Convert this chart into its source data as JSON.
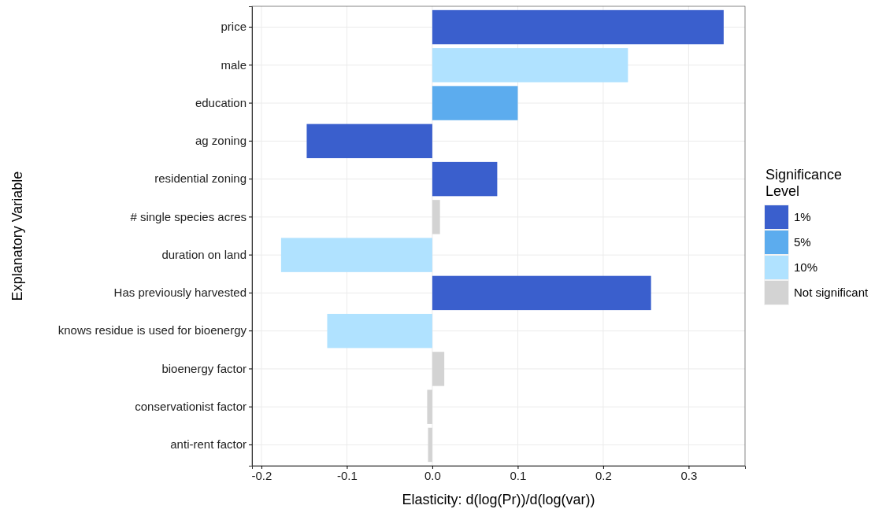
{
  "chart_data": {
    "type": "bar",
    "orientation": "horizontal",
    "xlabel": "Elasticity: d(log(Pr))/d(log(var))",
    "ylabel": "Explanatory Variable",
    "legend_title": "Significance Level",
    "categories": [
      "price",
      "male",
      "education",
      "ag zoning",
      "residential zoning",
      "# single species acres",
      "duration on land",
      "Has previously harvested",
      "knows residue is used for bioenergy",
      "bioenergy factor",
      "conservationist factor",
      "anti-rent factor"
    ],
    "series": [
      {
        "name": "1%",
        "color": "#3a5fcd",
        "values": [
          0.341,
          null,
          null,
          -0.147,
          0.076,
          null,
          null,
          0.256,
          null,
          null,
          null,
          null
        ]
      },
      {
        "name": "5%",
        "color": "#5cacee",
        "values": [
          null,
          null,
          0.1,
          null,
          null,
          null,
          null,
          null,
          null,
          null,
          null,
          null
        ]
      },
      {
        "name": "10%",
        "color": "#b0e2ff",
        "values": [
          null,
          0.229,
          null,
          null,
          null,
          null,
          -0.177,
          null,
          -0.123,
          null,
          null,
          null
        ]
      },
      {
        "name": "Not significant",
        "color": "#d3d3d3",
        "values": [
          null,
          null,
          null,
          null,
          null,
          0.009,
          null,
          null,
          null,
          0.014,
          -0.006,
          -0.005
        ]
      }
    ],
    "xlim": [
      -0.211,
      0.366
    ],
    "xticks": [
      {
        "value": -0.2,
        "label": "-0.2"
      },
      {
        "value": -0.1,
        "label": "-0.1"
      },
      {
        "value": 0,
        "label": "0.0"
      },
      {
        "value": 0.1,
        "label": "0.1"
      },
      {
        "value": 0.2,
        "label": "0.2"
      },
      {
        "value": 0.3,
        "label": "0.3"
      }
    ],
    "grid": true,
    "legend": "right"
  }
}
